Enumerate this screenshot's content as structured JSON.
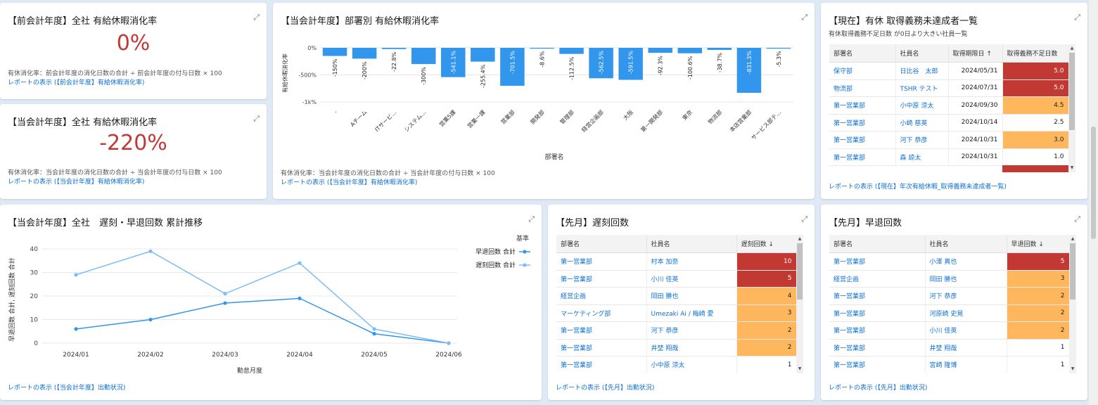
{
  "card_prev_rate": {
    "title": "【前会計年度】全社 有給休暇消化率",
    "value": "0%",
    "formula": "有休消化率：前会計年度の消化日数の合計 ÷ 前会計年度の付与日数 × 100",
    "link": "レポートの表示 (【前会計年度】有給休暇消化率)"
  },
  "card_cur_rate": {
    "title": "【当会計年度】全社 有給休暇消化率",
    "value": "-220%",
    "formula": "有休消化率：当会計年度の消化日数の合計 ÷ 当会計年度の付与日数 × 100",
    "link": "レポートの表示 (【当会計年度】有給休暇消化率)"
  },
  "card_dept_rate": {
    "title": "【当会計年度】部署別 有給休暇消化率",
    "formula": "有休消化率：当会計年度の消化日数の合計 ÷ 当会計年度の付与日数 × 100",
    "link": "レポートの表示 (【当会計年度】有給休暇消化率)"
  },
  "card_unachieved": {
    "title": "【現在】有休 取得義務未達成者一覧",
    "subtitle": "有休取得義務不足日数 が0日より大きい社員一覧",
    "columns": [
      "部署名",
      "社員名",
      "取得期限日 ↑",
      "取得義務不足日数"
    ],
    "rows": [
      {
        "dept": "保守部",
        "emp": "日比谷　太郎",
        "date": "2024/05/31",
        "days": "5.0",
        "color": "red"
      },
      {
        "dept": "物流部",
        "emp": "TSHR テスト",
        "date": "2024/07/31",
        "days": "5.0",
        "color": "red"
      },
      {
        "dept": "第一営業部",
        "emp": "小中原 涼太",
        "date": "2024/09/30",
        "days": "4.5",
        "color": "orange"
      },
      {
        "dept": "第一営業部",
        "emp": "小崎 慈英",
        "date": "2024/10/14",
        "days": "2.5",
        "color": "none"
      },
      {
        "dept": "第一営業部",
        "emp": "河下 恭彦",
        "date": "2024/10/31",
        "days": "3.0",
        "color": "orange"
      },
      {
        "dept": "第一営業部",
        "emp": "森 諒太",
        "date": "2024/10/31",
        "days": "1.0",
        "color": "none"
      }
    ],
    "link": "レポートの表示 (【現在】年次有給休暇_取得義務未達成者一覧)"
  },
  "card_trend": {
    "title": "【当会計年度】全社　遅刻・早退回数 累計推移",
    "link": "レポートの表示 (【当会計年度】出勤状況)"
  },
  "card_late": {
    "title": "【先月】遅刻回数",
    "columns": [
      "部署名",
      "社員名",
      "遅刻回数 ↓"
    ],
    "rows": [
      {
        "dept": "第一営業部",
        "emp": "村本 加奈",
        "count": "10",
        "color": "red"
      },
      {
        "dept": "第一営業部",
        "emp": "小川 佳英",
        "count": "5",
        "color": "red"
      },
      {
        "dept": "経営企画",
        "emp": "岡田 勝也",
        "count": "4",
        "color": "orange"
      },
      {
        "dept": "マーケティング部",
        "emp": "Umezaki Ai / 梅崎 愛",
        "count": "3",
        "color": "orange"
      },
      {
        "dept": "第一営業部",
        "emp": "河下 恭彦",
        "count": "2",
        "color": "orange"
      },
      {
        "dept": "第一営業部",
        "emp": "井埜 翔哉",
        "count": "2",
        "color": "orange"
      },
      {
        "dept": "第一営業部",
        "emp": "小中原 涼太",
        "count": "1",
        "color": "none"
      }
    ],
    "link": "レポートの表示 (【先月】出勤状況)"
  },
  "card_early": {
    "title": "【先月】早退回数",
    "columns": [
      "部署名",
      "社員名",
      "早退回数 ↓"
    ],
    "rows": [
      {
        "dept": "第一営業部",
        "emp": "小澤 真也",
        "count": "5",
        "color": "red"
      },
      {
        "dept": "経営企画",
        "emp": "岡田 勝也",
        "count": "3",
        "color": "orange"
      },
      {
        "dept": "第一営業部",
        "emp": "河下 恭彦",
        "count": "2",
        "color": "orange"
      },
      {
        "dept": "第一営業部",
        "emp": "河原崎 史晃",
        "count": "2",
        "color": "orange"
      },
      {
        "dept": "第一営業部",
        "emp": "小川 佳英",
        "count": "2",
        "color": "orange"
      },
      {
        "dept": "第一営業部",
        "emp": "井埜 翔哉",
        "count": "1",
        "color": "none"
      },
      {
        "dept": "第一営業部",
        "emp": "宮崎 隆博",
        "count": "1",
        "color": "none"
      }
    ],
    "link": "レポートの表示 (【先月】出勤状況)"
  },
  "colors": {
    "red": "#c23934",
    "orange": "#ffb75d",
    "bar": "#3296ed",
    "line_early": "#3296ed",
    "line_late": "#7dbdf2",
    "link": "#0b6fd6"
  },
  "chart_data": [
    {
      "type": "bar",
      "categories": [
        "-",
        "Aチーム",
        "ITサービ…",
        "システム…",
        "営業5課",
        "営業一課",
        "営業部",
        "開発部",
        "管理部",
        "経営企画部",
        "大阪",
        "第一開発部",
        "東京",
        "物流部",
        "本店営業部",
        "サービス部テ…"
      ],
      "values": [
        -150,
        -200,
        -22.8,
        -300,
        -541.1,
        -255.4,
        -701.5,
        -8.6,
        -112.5,
        -562.5,
        -591.5,
        -92.3,
        -100.6,
        -38.7,
        -831.3,
        -5.3
      ],
      "value_labels": [
        "-150%",
        "-200%",
        "-22.8%",
        "-300%",
        "-541.1%",
        "-255.4%",
        "-701.5%",
        "-8.6%",
        "-112.5%",
        "-562.5%",
        "-591.5%",
        "-92.3%",
        "-100.6%",
        "-38.7%",
        "-831.3%",
        "-5.3%"
      ],
      "xlabel": "部署名",
      "ylabel": "有給休暇消化率",
      "ylim": [
        -1000,
        0
      ],
      "yticks": [
        0,
        -500,
        -1000
      ],
      "ytick_labels": [
        "0%",
        "-500%",
        "-1k%"
      ],
      "grid": true
    },
    {
      "type": "line",
      "x": [
        "2024/01",
        "2024/02",
        "2024/03",
        "2024/04",
        "2024/05",
        "2024/06"
      ],
      "series": [
        {
          "name": "早退回数 合計",
          "values": [
            6,
            10,
            17,
            19,
            4,
            0
          ]
        },
        {
          "name": "遅刻回数 合計",
          "values": [
            29,
            39,
            21,
            34,
            6,
            0
          ]
        }
      ],
      "xlabel": "勤怠月度",
      "ylabel": "早退回数 合計, 遅刻回数 合計",
      "ylim": [
        0,
        40
      ],
      "yticks": [
        0,
        10,
        20,
        30,
        40
      ],
      "legend_title": "基準",
      "legend_position": "top-right",
      "grid": true
    }
  ]
}
